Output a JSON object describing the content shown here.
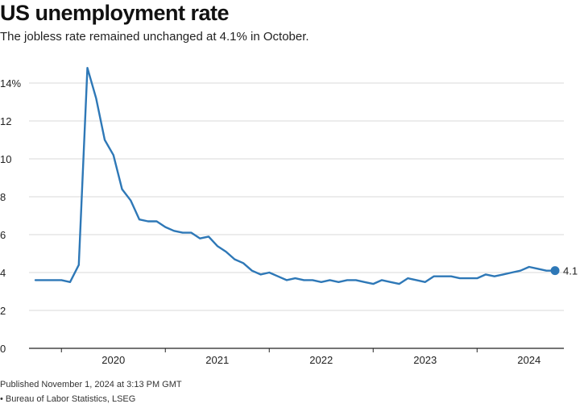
{
  "title": "US unemployment rate",
  "subtitle": "The jobless rate remained unchanged at 4.1% in October.",
  "published": "Published November 1, 2024 at 3:13 PM GMT",
  "source": "• Bureau of Labor Statistics, LSEG",
  "colors": {
    "line": "#2e78b7",
    "grid": "#d9d9d9",
    "baseline": "#222222"
  },
  "chart_data": {
    "type": "line",
    "title": "US unemployment rate",
    "xlabel": "",
    "ylabel": "",
    "ylim": [
      0,
      14
    ],
    "yticks": [
      0,
      2,
      4,
      6,
      8,
      10,
      12,
      14
    ],
    "ytick_labels": [
      "0",
      "2",
      "4",
      "6",
      "8",
      "10",
      "12",
      "14%"
    ],
    "xtick_labels": [
      "2020",
      "2021",
      "2022",
      "2023",
      "2024"
    ],
    "grid": true,
    "end_label": "4.1",
    "series": [
      {
        "x": [
          "2019-10",
          "2019-11",
          "2019-12",
          "2020-01",
          "2020-02",
          "2020-03",
          "2020-04",
          "2020-05",
          "2020-06",
          "2020-07",
          "2020-08",
          "2020-09",
          "2020-10",
          "2020-11",
          "2020-12",
          "2021-01",
          "2021-02",
          "2021-03",
          "2021-04",
          "2021-05",
          "2021-06",
          "2021-07",
          "2021-08",
          "2021-09",
          "2021-10",
          "2021-11",
          "2021-12",
          "2022-01",
          "2022-02",
          "2022-03",
          "2022-04",
          "2022-05",
          "2022-06",
          "2022-07",
          "2022-08",
          "2022-09",
          "2022-10",
          "2022-11",
          "2022-12",
          "2023-01",
          "2023-02",
          "2023-03",
          "2023-04",
          "2023-05",
          "2023-06",
          "2023-07",
          "2023-08",
          "2023-09",
          "2023-10",
          "2023-11",
          "2023-12",
          "2024-01",
          "2024-02",
          "2024-03",
          "2024-04",
          "2024-05",
          "2024-06",
          "2024-07",
          "2024-08",
          "2024-09",
          "2024-10"
        ],
        "values": [
          3.6,
          3.6,
          3.6,
          3.6,
          3.5,
          4.4,
          14.8,
          13.2,
          11.0,
          10.2,
          8.4,
          7.8,
          6.8,
          6.7,
          6.7,
          6.4,
          6.2,
          6.1,
          6.1,
          5.8,
          5.9,
          5.4,
          5.1,
          4.7,
          4.5,
          4.1,
          3.9,
          4.0,
          3.8,
          3.6,
          3.7,
          3.6,
          3.6,
          3.5,
          3.6,
          3.5,
          3.6,
          3.6,
          3.5,
          3.4,
          3.6,
          3.5,
          3.4,
          3.7,
          3.6,
          3.5,
          3.8,
          3.8,
          3.8,
          3.7,
          3.7,
          3.7,
          3.9,
          3.8,
          3.9,
          4.0,
          4.1,
          4.3,
          4.2,
          4.1,
          4.1
        ]
      }
    ]
  }
}
